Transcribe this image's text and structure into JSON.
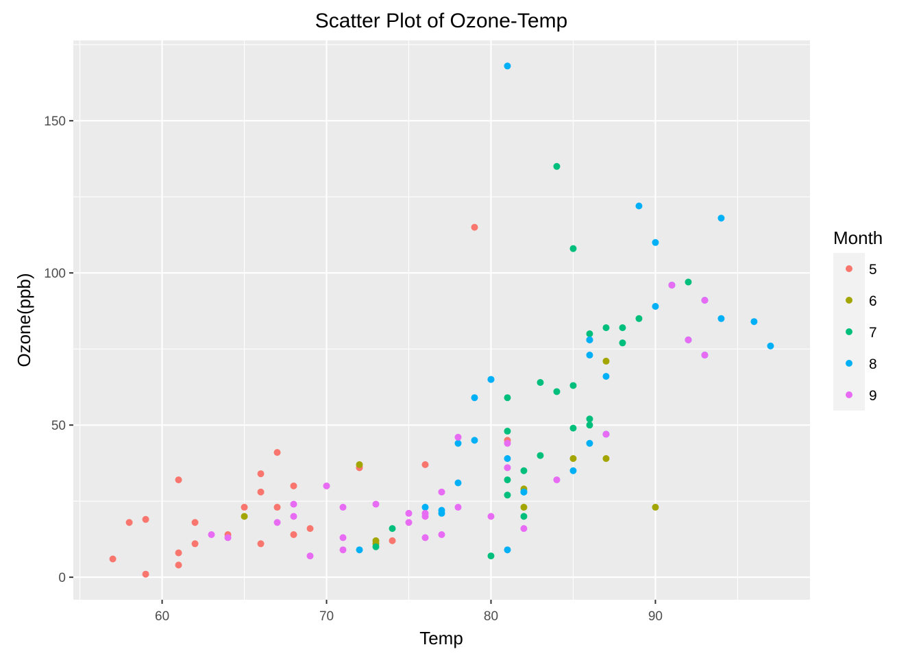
{
  "chart_data": {
    "type": "scatter",
    "title": "Scatter Plot of Ozone-Temp",
    "xlabel": "Temp",
    "ylabel": "Ozone(ppb)",
    "xlim": [
      54.6,
      99.4
    ],
    "ylim": [
      -7.4,
      176.4
    ],
    "x_ticks": [
      60,
      70,
      80,
      90
    ],
    "y_ticks": [
      0,
      50,
      100,
      150
    ],
    "grid": true,
    "background": "#ebebeb",
    "legend": {
      "title": "Month",
      "position": "right"
    },
    "series": [
      {
        "name": "5",
        "color": "#F8766D",
        "points": [
          [
            67,
            41
          ],
          [
            72,
            36
          ],
          [
            74,
            12
          ],
          [
            62,
            18
          ],
          [
            65,
            23
          ],
          [
            59,
            19
          ],
          [
            61,
            8
          ],
          [
            69,
            16
          ],
          [
            66,
            11
          ],
          [
            68,
            14
          ],
          [
            58,
            18
          ],
          [
            64,
            14
          ],
          [
            66,
            34
          ],
          [
            57,
            6
          ],
          [
            68,
            30
          ],
          [
            62,
            11
          ],
          [
            59,
            1
          ],
          [
            61,
            4
          ],
          [
            67,
            23
          ],
          [
            81,
            45
          ],
          [
            79,
            115
          ],
          [
            76,
            37
          ],
          [
            61,
            32
          ],
          [
            66,
            28
          ]
        ]
      },
      {
        "name": "6",
        "color": "#A3A500",
        "points": [
          [
            72,
            37
          ],
          [
            87,
            39
          ],
          [
            82,
            29
          ],
          [
            87,
            71
          ],
          [
            90,
            23
          ],
          [
            65,
            20
          ],
          [
            73,
            12
          ],
          [
            82,
            23
          ],
          [
            73,
            11
          ],
          [
            85,
            39
          ]
        ]
      },
      {
        "name": "7",
        "color": "#00BF7D",
        "points": [
          [
            84,
            135
          ],
          [
            85,
            49
          ],
          [
            81,
            32
          ],
          [
            82,
            20
          ],
          [
            87,
            82
          ],
          [
            86,
            80
          ],
          [
            85,
            108
          ],
          [
            81,
            59
          ],
          [
            84,
            61
          ],
          [
            85,
            63
          ],
          [
            86,
            52
          ],
          [
            83,
            64
          ],
          [
            89,
            85
          ],
          [
            86,
            50
          ],
          [
            88,
            77
          ],
          [
            88,
            82
          ],
          [
            92,
            97
          ],
          [
            83,
            40
          ],
          [
            74,
            16
          ],
          [
            80,
            7
          ],
          [
            73,
            10
          ],
          [
            81,
            27
          ],
          [
            82,
            35
          ],
          [
            81,
            48
          ]
        ]
      },
      {
        "name": "8",
        "color": "#00B0F6",
        "points": [
          [
            81,
            39
          ],
          [
            81,
            9
          ],
          [
            82,
            28
          ],
          [
            86,
            44
          ],
          [
            85,
            35
          ],
          [
            87,
            66
          ],
          [
            89,
            122
          ],
          [
            90,
            89
          ],
          [
            90,
            110
          ],
          [
            94,
            118
          ],
          [
            86,
            78
          ],
          [
            97,
            76
          ],
          [
            96,
            84
          ],
          [
            94,
            85
          ],
          [
            91,
            96
          ],
          [
            92,
            78
          ],
          [
            93,
            73
          ],
          [
            93,
            91
          ],
          [
            87,
            47
          ],
          [
            80,
            65
          ],
          [
            77,
            22
          ],
          [
            79,
            59
          ],
          [
            72,
            9
          ],
          [
            77,
            21
          ],
          [
            76,
            23
          ],
          [
            78,
            44
          ],
          [
            79,
            45
          ],
          [
            82,
            28
          ],
          [
            86,
            73
          ],
          [
            81,
            168
          ],
          [
            80,
            65
          ],
          [
            78,
            31
          ],
          [
            86,
            78
          ]
        ]
      },
      {
        "name": "9",
        "color": "#E76BF3",
        "points": [
          [
            91,
            96
          ],
          [
            92,
            78
          ],
          [
            93,
            73
          ],
          [
            93,
            91
          ],
          [
            87,
            47
          ],
          [
            84,
            32
          ],
          [
            80,
            20
          ],
          [
            78,
            23
          ],
          [
            75,
            21
          ],
          [
            73,
            24
          ],
          [
            81,
            44
          ],
          [
            76,
            21
          ],
          [
            77,
            28
          ],
          [
            71,
            9
          ],
          [
            71,
            13
          ],
          [
            78,
            46
          ],
          [
            67,
            18
          ],
          [
            76,
            13
          ],
          [
            68,
            24
          ],
          [
            82,
            16
          ],
          [
            64,
            13
          ],
          [
            71,
            23
          ],
          [
            81,
            36
          ],
          [
            69,
            7
          ],
          [
            63,
            14
          ],
          [
            70,
            30
          ],
          [
            77,
            14
          ],
          [
            75,
            18
          ],
          [
            76,
            20
          ],
          [
            68,
            20
          ]
        ]
      }
    ]
  }
}
